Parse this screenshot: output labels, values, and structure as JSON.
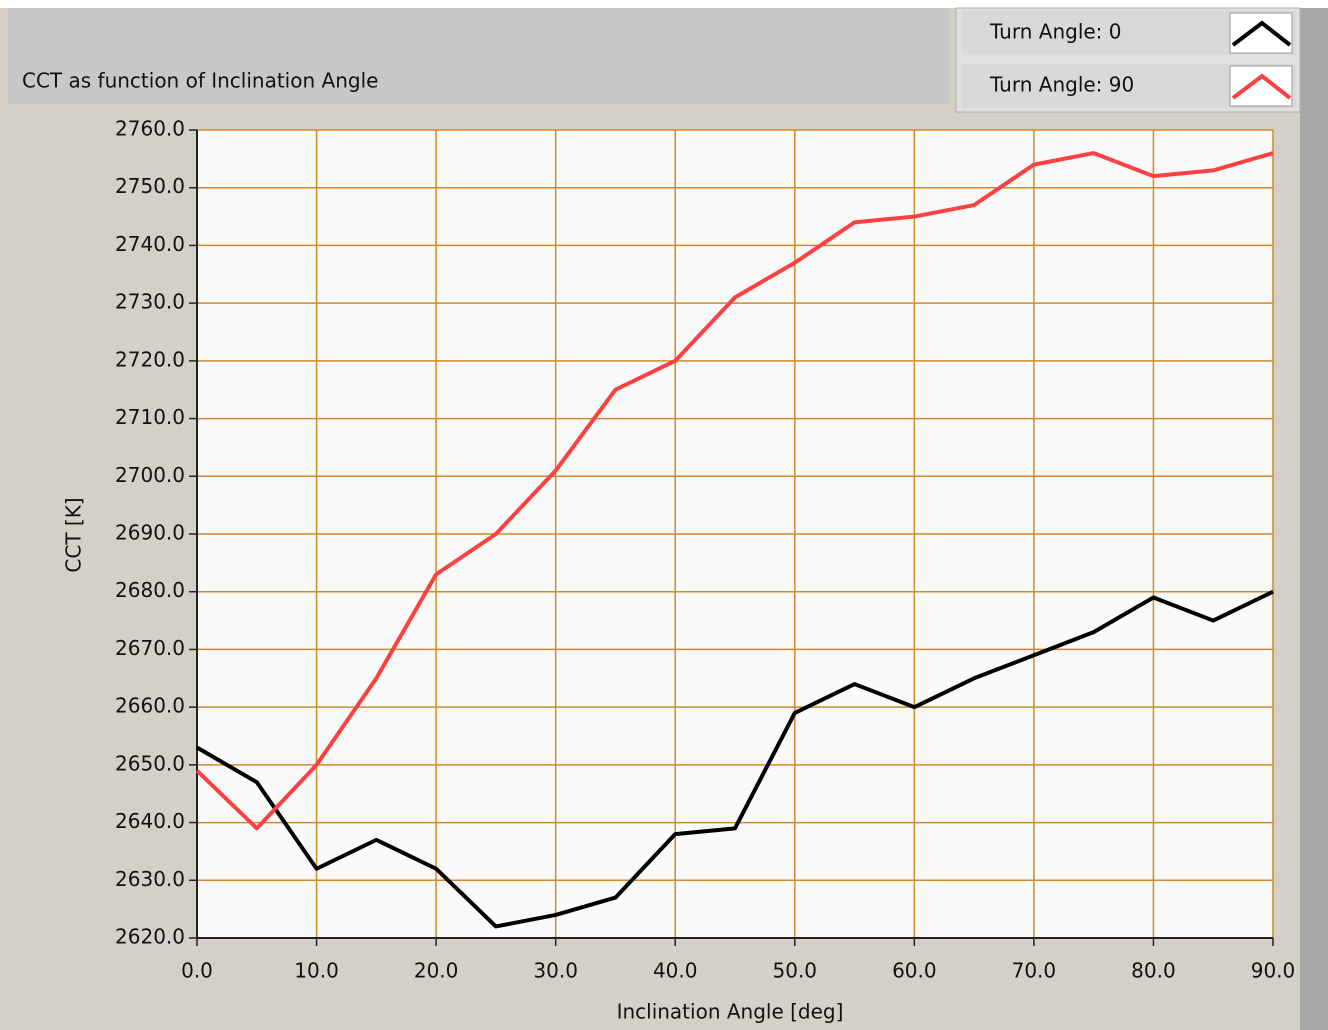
{
  "chart_data": {
    "type": "line",
    "title": "CCT as function of Inclination Angle",
    "xlabel": "Inclination Angle [deg]",
    "ylabel": "CCT [K]",
    "x": [
      0,
      5,
      10,
      15,
      20,
      25,
      30,
      35,
      40,
      45,
      50,
      55,
      60,
      65,
      70,
      75,
      80,
      85,
      90
    ],
    "series": [
      {
        "name": "Turn Angle: 0",
        "color": "#000000",
        "values": [
          2653,
          2647,
          2632,
          2637,
          2632,
          2622,
          2624,
          2627,
          2638,
          2639,
          2659,
          2664,
          2660,
          2665,
          2669,
          2673,
          2679,
          2675,
          2680
        ]
      },
      {
        "name": "Turn Angle: 90",
        "color": "#ff4040",
        "values": [
          2649,
          2639,
          2650,
          2665,
          2683,
          2690,
          2701,
          2715,
          2720,
          2731,
          2737,
          2744,
          2745,
          2747,
          2754,
          2756,
          2752,
          2753,
          2756
        ]
      }
    ],
    "xlim": [
      0,
      90
    ],
    "xticks": [
      {
        "value": 0,
        "label": "0.0"
      },
      {
        "value": 10,
        "label": "10.0"
      },
      {
        "value": 20,
        "label": "20.0"
      },
      {
        "value": 30,
        "label": "30.0"
      },
      {
        "value": 40,
        "label": "40.0"
      },
      {
        "value": 50,
        "label": "50.0"
      },
      {
        "value": 60,
        "label": "60.0"
      },
      {
        "value": 70,
        "label": "70.0"
      },
      {
        "value": 80,
        "label": "80.0"
      },
      {
        "value": 90,
        "label": "90.0"
      }
    ],
    "ylim": [
      2620,
      2760
    ],
    "yticks": [
      {
        "value": 2620,
        "label": "2620.0"
      },
      {
        "value": 2630,
        "label": "2630.0"
      },
      {
        "value": 2640,
        "label": "2640.0"
      },
      {
        "value": 2650,
        "label": "2650.0"
      },
      {
        "value": 2660,
        "label": "2660.0"
      },
      {
        "value": 2670,
        "label": "2670.0"
      },
      {
        "value": 2680,
        "label": "2680.0"
      },
      {
        "value": 2690,
        "label": "2690.0"
      },
      {
        "value": 2700,
        "label": "2700.0"
      },
      {
        "value": 2710,
        "label": "2710.0"
      },
      {
        "value": 2720,
        "label": "2720.0"
      },
      {
        "value": 2730,
        "label": "2730.0"
      },
      {
        "value": 2740,
        "label": "2740.0"
      },
      {
        "value": 2750,
        "label": "2750.0"
      },
      {
        "value": 2760,
        "label": "2760.0"
      }
    ],
    "grid": true,
    "grid_color": "#d08a2a",
    "legend": "top-right"
  }
}
